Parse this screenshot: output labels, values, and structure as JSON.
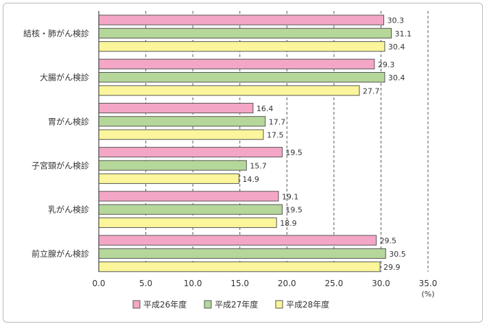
{
  "chart_data": {
    "type": "bar",
    "orientation": "horizontal",
    "categories": [
      "結核・肺がん検診",
      "大腸がん検診",
      "胃がん検診",
      "子宮頸がん検診",
      "乳がん検診",
      "前立腺がん検診"
    ],
    "series": [
      {
        "name": "平成26年度",
        "color": "#f4a6c6",
        "values": [
          30.3,
          29.3,
          16.4,
          19.5,
          19.1,
          29.5
        ]
      },
      {
        "name": "平成27年度",
        "color": "#b5d79a",
        "values": [
          31.1,
          30.4,
          17.7,
          15.7,
          19.5,
          30.5
        ]
      },
      {
        "name": "平成28年度",
        "color": "#fbf59b",
        "values": [
          30.4,
          27.7,
          17.5,
          14.9,
          18.9,
          29.9
        ]
      }
    ],
    "xlim": [
      0,
      35
    ],
    "xticks": [
      0,
      5,
      10,
      15,
      20,
      25,
      30,
      35
    ],
    "xtick_labels": [
      "0.0",
      "5.0",
      "10.0",
      "15.0",
      "20.0",
      "25.0",
      "30.0",
      "35.0"
    ],
    "unit_label": "(%)",
    "grid": "vertical-dashed",
    "legend_position": "bottom"
  }
}
